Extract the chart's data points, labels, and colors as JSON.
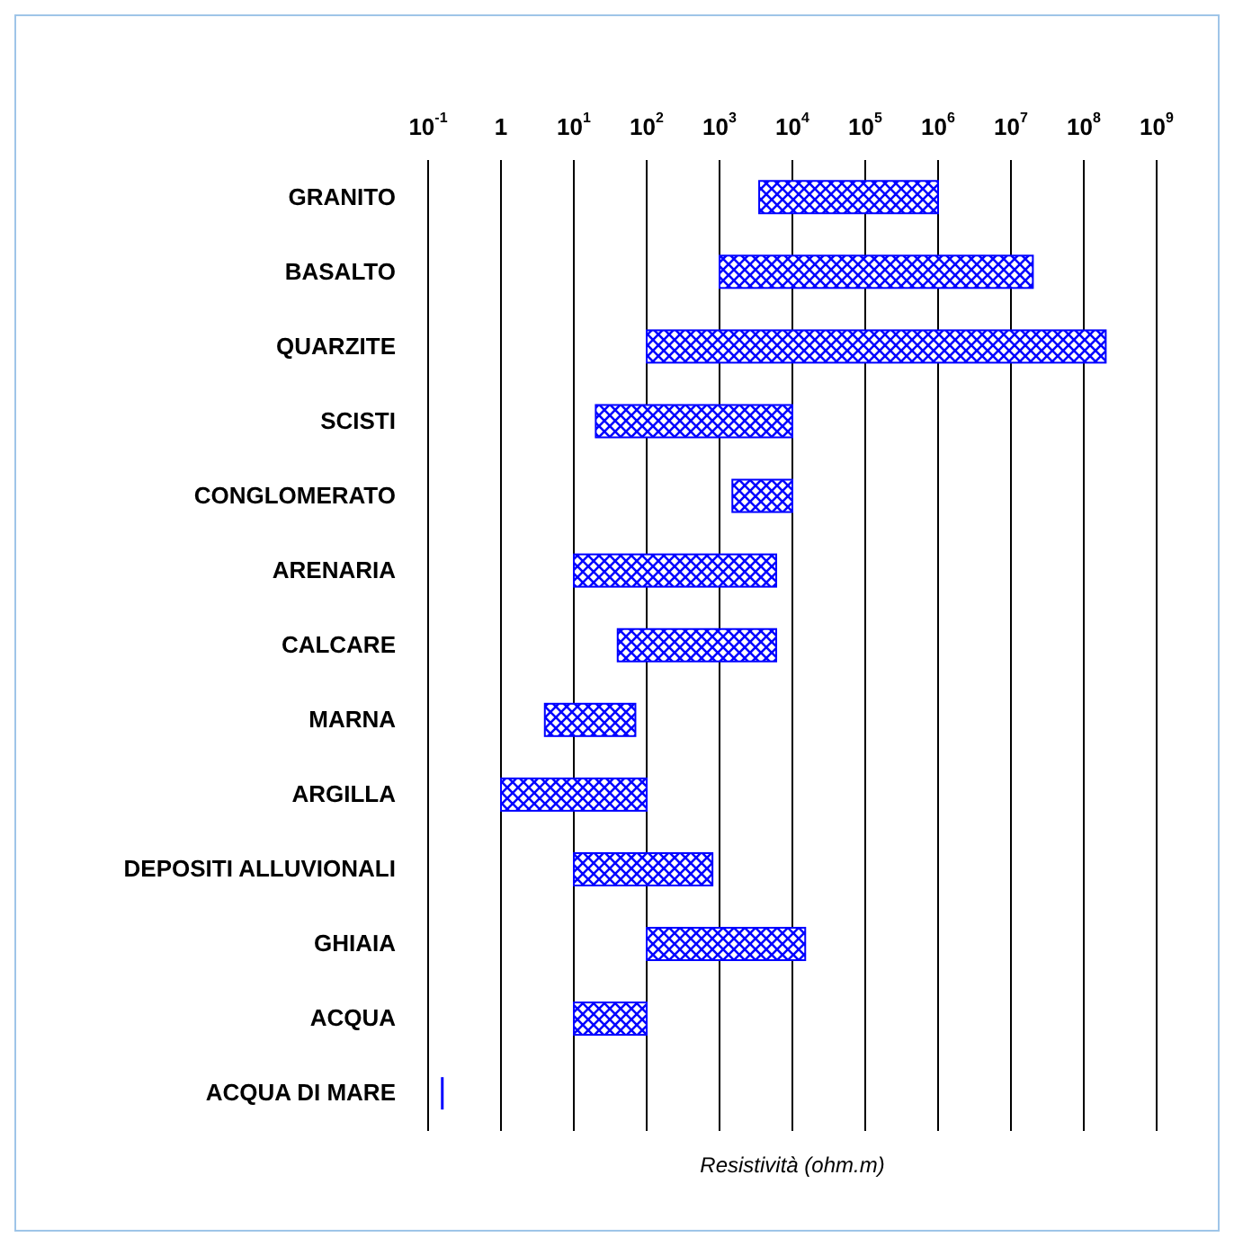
{
  "chart_data": {
    "type": "bar",
    "orientation": "horizontal",
    "log": "x",
    "grid": "x",
    "xlabel": "Resistività (ohm.m)",
    "categories": [
      "GRANITO",
      "BASALTO",
      "QUARZITE",
      "SCISTI",
      "CONGLOMERATO",
      "ARENARIA",
      "CALCARE",
      "MARNA",
      "ARGILLA",
      "DEPOSITI ALLUVIONALI",
      "GHIAIA",
      "ACQUA",
      "ACQUA DI MARE"
    ],
    "base": [
      3500,
      1000,
      100,
      20,
      1500,
      10,
      40,
      4,
      1,
      10,
      100,
      10,
      0.15
    ],
    "values": [
      996500,
      19999000,
      199999900,
      9980,
      8500,
      5990,
      5960,
      66,
      99,
      790,
      14900,
      90,
      0.005
    ],
    "color": "#0000ff",
    "xlim": [
      0.1,
      1000000000
    ],
    "xticks": [
      {
        "value": 0.1,
        "label": "10$^{-1}$"
      },
      1,
      {
        "value": 10,
        "label": "10$^{1}$"
      },
      {
        "value": 100,
        "label": "10$^{2}$"
      },
      {
        "value": 1000,
        "label": "10$^{3}$"
      },
      {
        "value": 10000,
        "label": "10$^{4}$"
      },
      {
        "value": 100000,
        "label": "10$^{5}$"
      },
      {
        "value": 1000000,
        "label": "10$^{6}$"
      },
      {
        "value": 10000000,
        "label": "10$^{7}$"
      },
      {
        "value": 100000000,
        "label": "10$^{8}$"
      },
      {
        "value": 1000000000,
        "label": "10$^{9}$"
      }
    ]
  }
}
